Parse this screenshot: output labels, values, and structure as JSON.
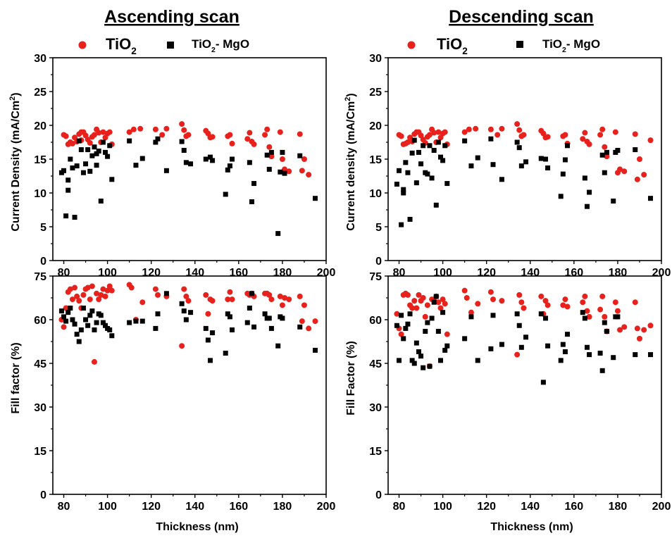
{
  "chart_data": [
    {
      "type": "scatter",
      "title": "Ascending scan",
      "xlabel": "Thickness (nm)",
      "ylabel": "Current Density (mA/Cm2)",
      "xlim": [
        75,
        200
      ],
      "ylim": [
        0,
        30
      ],
      "xticks": [
        "80",
        "100",
        "120",
        "140",
        "160",
        "180",
        "200"
      ],
      "yticks": [
        "0",
        "5",
        "10",
        "15",
        "20",
        "25",
        "30"
      ],
      "series": [
        {
          "name": "TiO2",
          "color": "#e8211c",
          "marker": "circle",
          "x": [
            80,
            81,
            82,
            83,
            84,
            85,
            86,
            87,
            88,
            88,
            89,
            90,
            91,
            92,
            93,
            94,
            95,
            96,
            97,
            98,
            99,
            100,
            101,
            102,
            110,
            112,
            115,
            122,
            125,
            127,
            134,
            135,
            136,
            137,
            145,
            146,
            147,
            148,
            155,
            156,
            157,
            164,
            165,
            166,
            167,
            172,
            173,
            174,
            175,
            179,
            180,
            181,
            183,
            188,
            189,
            190,
            192
          ],
          "y": [
            18.6,
            18.4,
            17.2,
            17.5,
            17.3,
            18.2,
            17.6,
            18.7,
            19.0,
            17.8,
            19.0,
            18.5,
            17.9,
            17.4,
            18.3,
            18.6,
            19.4,
            18.9,
            17.5,
            19.0,
            18.2,
            18.8,
            19.0,
            17.2,
            19.0,
            19.4,
            19.5,
            19.4,
            18.6,
            19.5,
            20.2,
            19.3,
            18.4,
            18.6,
            19.2,
            18.8,
            18.2,
            18.3,
            18.4,
            18.6,
            17.3,
            18.0,
            18.9,
            17.6,
            17.2,
            18.6,
            19.4,
            16.8,
            15.4,
            19.0,
            15.0,
            13.5,
            13.2,
            18.7,
            13.3,
            15.0,
            12.7
          ]
        },
        {
          "name": "TiO2- MgO",
          "color": "#000000",
          "marker": "square",
          "x": [
            79,
            80,
            81,
            82,
            82,
            83,
            84,
            85,
            86,
            87,
            88,
            89,
            90,
            91,
            92,
            93,
            94,
            95,
            95,
            96,
            97,
            98,
            99,
            100,
            101,
            102,
            110,
            113,
            116,
            122,
            123,
            127,
            134,
            135,
            136,
            138,
            145,
            147,
            148,
            154,
            155,
            156,
            157,
            165,
            166,
            167,
            173,
            174,
            175,
            178,
            179,
            180,
            181,
            188,
            195
          ],
          "y": [
            13.0,
            13.3,
            6.6,
            11.9,
            10.4,
            15.0,
            13.7,
            6.4,
            14.0,
            17.7,
            16.4,
            13.0,
            14.3,
            16.4,
            13.2,
            15.5,
            16.8,
            15.8,
            14.1,
            16.2,
            8.8,
            17.5,
            16.0,
            15.4,
            17.0,
            12.0,
            17.7,
            14.1,
            15.1,
            17.5,
            18.0,
            13.3,
            17.6,
            16.3,
            14.5,
            14.3,
            15.0,
            15.3,
            14.8,
            9.8,
            13.4,
            14.0,
            15.0,
            14.5,
            8.7,
            11.4,
            15.6,
            13.5,
            16.0,
            4.0,
            13.1,
            16.0,
            12.9,
            15.5,
            9.2
          ]
        }
      ]
    },
    {
      "type": "scatter",
      "title": "Descending scan",
      "xlabel": "Thickness (nm)",
      "ylabel": "Current density (mA/Cm2)",
      "xlim": [
        75,
        200
      ],
      "ylim": [
        0,
        30
      ],
      "xticks": [
        "80",
        "100",
        "120",
        "140",
        "160",
        "180",
        "200"
      ],
      "yticks": [
        "0",
        "5",
        "10",
        "15",
        "20",
        "25",
        "30"
      ],
      "series": [
        {
          "name": "TiO2",
          "color": "#e8211c",
          "marker": "circle",
          "x": [
            80,
            81,
            82,
            83,
            84,
            85,
            86,
            87,
            88,
            89,
            90,
            91,
            92,
            93,
            94,
            95,
            96,
            97,
            98,
            99,
            100,
            101,
            102,
            110,
            112,
            115,
            122,
            125,
            127,
            134,
            135,
            136,
            137,
            145,
            146,
            147,
            148,
            155,
            156,
            157,
            164,
            165,
            166,
            167,
            172,
            173,
            174,
            175,
            179,
            180,
            181,
            183,
            188,
            189,
            190,
            192,
            195
          ],
          "y": [
            18.6,
            18.4,
            17.2,
            17.3,
            17.5,
            18.2,
            17.6,
            18.7,
            19.0,
            19.0,
            18.5,
            17.9,
            17.4,
            18.3,
            18.6,
            19.4,
            18.9,
            17.5,
            19.0,
            18.2,
            18.8,
            19.0,
            17.2,
            19.0,
            19.4,
            19.5,
            19.4,
            18.6,
            19.5,
            20.2,
            19.3,
            18.4,
            18.6,
            19.2,
            18.8,
            18.2,
            18.3,
            18.4,
            18.6,
            17.3,
            18.0,
            18.9,
            17.6,
            17.2,
            18.6,
            19.4,
            16.8,
            15.4,
            19.0,
            13.0,
            13.5,
            13.2,
            18.7,
            12.0,
            15.0,
            12.7,
            17.8
          ]
        },
        {
          "name": "TiO2- MgO",
          "color": "#000000",
          "marker": "square",
          "x": [
            79,
            80,
            81,
            82,
            82,
            83,
            84,
            85,
            86,
            87,
            88,
            89,
            90,
            91,
            92,
            93,
            94,
            95,
            96,
            97,
            98,
            99,
            100,
            101,
            102,
            110,
            113,
            116,
            122,
            123,
            127,
            134,
            135,
            136,
            138,
            145,
            147,
            148,
            154,
            155,
            156,
            157,
            165,
            166,
            167,
            173,
            174,
            175,
            178,
            179,
            180,
            188,
            195
          ],
          "y": [
            11.3,
            13.3,
            5.3,
            10.5,
            10.0,
            14.5,
            13.0,
            6.1,
            15.9,
            17.8,
            11.5,
            16.0,
            14.3,
            17.0,
            13.0,
            12.8,
            17.0,
            12.2,
            16.3,
            8.2,
            17.5,
            15.3,
            14.8,
            17.0,
            11.4,
            17.7,
            14.0,
            15.2,
            18.0,
            14.2,
            12.0,
            17.5,
            16.7,
            14.0,
            14.6,
            15.1,
            15.0,
            13.7,
            9.5,
            12.8,
            14.9,
            17.0,
            12.2,
            8.0,
            10.1,
            15.6,
            13.0,
            16.0,
            8.8,
            16.0,
            16.3,
            16.4,
            9.2
          ]
        }
      ]
    },
    {
      "type": "scatter",
      "title": "",
      "xlabel": "Thickness (nm)",
      "ylabel": "Fill factor (%)",
      "xlim": [
        75,
        200
      ],
      "ylim": [
        0,
        75
      ],
      "xticks": [
        "80",
        "100",
        "120",
        "140",
        "160",
        "180",
        "200"
      ],
      "yticks": [
        "0",
        "15",
        "30",
        "45",
        "60",
        "75"
      ],
      "series": [
        {
          "name": "TiO2",
          "color": "#e8211c",
          "marker": "circle",
          "x": [
            79,
            80,
            81,
            82,
            83,
            84,
            85,
            86,
            87,
            88,
            89,
            90,
            91,
            92,
            93,
            94,
            95,
            96,
            97,
            98,
            99,
            100,
            101,
            102,
            110,
            111,
            113,
            116,
            122,
            123,
            127,
            134,
            135,
            136,
            137,
            145,
            146,
            147,
            148,
            155,
            156,
            157,
            164,
            165,
            166,
            167,
            172,
            173,
            174,
            175,
            179,
            180,
            181,
            183,
            188,
            189,
            190,
            192,
            195
          ],
          "y": [
            60.0,
            57.5,
            64.0,
            69.5,
            70.5,
            67.0,
            71.0,
            68.0,
            66.5,
            64.0,
            68.5,
            70.5,
            71.0,
            67.0,
            71.5,
            45.5,
            69.0,
            67.0,
            68.5,
            70.5,
            68.0,
            70.0,
            71.5,
            70.0,
            72.0,
            71.0,
            60.0,
            66.0,
            70.5,
            68.5,
            68.0,
            51.0,
            70.5,
            68.0,
            66.5,
            68.5,
            62.0,
            67.0,
            66.5,
            67.0,
            69.5,
            67.0,
            69.0,
            68.5,
            69.0,
            68.0,
            69.0,
            69.0,
            68.5,
            67.0,
            68.0,
            65.0,
            67.5,
            67.0,
            68.0,
            59.5,
            65.0,
            57.0,
            59.5
          ]
        },
        {
          "name": "TiO2- MgO",
          "color": "#000000",
          "marker": "square",
          "x": [
            79,
            80,
            81,
            82,
            83,
            84,
            85,
            86,
            87,
            88,
            89,
            90,
            91,
            92,
            93,
            94,
            95,
            96,
            97,
            98,
            99,
            100,
            101,
            102,
            110,
            113,
            116,
            122,
            123,
            127,
            134,
            135,
            136,
            138,
            145,
            146,
            147,
            148,
            154,
            155,
            156,
            157,
            164,
            165,
            166,
            167,
            172,
            173,
            174,
            175,
            178,
            179,
            180,
            188,
            195
          ],
          "y": [
            63.0,
            61.0,
            59.5,
            62.5,
            64.0,
            60.0,
            58.5,
            55.0,
            52.5,
            56.5,
            64.0,
            60.0,
            58.0,
            61.5,
            63.0,
            56.5,
            59.0,
            62.0,
            61.5,
            59.0,
            58.0,
            57.0,
            56.5,
            54.5,
            59.0,
            59.5,
            59.5,
            57.0,
            62.0,
            69.0,
            65.5,
            63.0,
            60.0,
            62.5,
            57.0,
            53.0,
            46.0,
            55.5,
            48.5,
            62.0,
            61.0,
            56.5,
            59.0,
            64.0,
            69.0,
            57.5,
            62.0,
            60.5,
            60.5,
            57.0,
            51.0,
            61.0,
            60.5,
            57.5,
            49.5
          ]
        }
      ]
    },
    {
      "type": "scatter",
      "title": "",
      "xlabel": "Thickness (nm)",
      "ylabel": "Fill Factor (%)",
      "xlim": [
        75,
        200
      ],
      "ylim": [
        0,
        75
      ],
      "xticks": [
        "80",
        "100",
        "120",
        "140",
        "160",
        "180",
        "200"
      ],
      "yticks": [
        "0",
        "15",
        "30",
        "45",
        "60",
        "75"
      ],
      "series": [
        {
          "name": "TiO2",
          "color": "#e8211c",
          "marker": "circle",
          "x": [
            79,
            80,
            81,
            82,
            83,
            84,
            85,
            86,
            87,
            88,
            89,
            90,
            91,
            92,
            93,
            94,
            95,
            96,
            97,
            98,
            99,
            100,
            101,
            102,
            110,
            111,
            113,
            116,
            122,
            123,
            127,
            134,
            135,
            136,
            137,
            145,
            146,
            147,
            148,
            155,
            156,
            157,
            164,
            165,
            166,
            167,
            172,
            173,
            174,
            175,
            179,
            180,
            181,
            183,
            188,
            189,
            190,
            192,
            195
          ],
          "y": [
            62.0,
            57.0,
            55.0,
            68.5,
            69.0,
            68.5,
            65.0,
            64.0,
            66.5,
            64.0,
            68.5,
            66.5,
            67.5,
            61.0,
            65.0,
            44.0,
            67.0,
            66.5,
            68.0,
            66.0,
            64.0,
            67.0,
            65.5,
            55.0,
            70.0,
            67.5,
            62.5,
            65.5,
            69.5,
            67.0,
            66.5,
            48.0,
            68.5,
            66.0,
            64.0,
            68.0,
            62.0,
            66.5,
            65.0,
            65.0,
            67.0,
            64.5,
            66.0,
            68.0,
            63.0,
            61.0,
            63.5,
            68.0,
            61.0,
            56.0,
            66.0,
            63.0,
            56.5,
            57.5,
            66.0,
            57.0,
            53.5,
            56.5,
            58.0
          ]
        },
        {
          "name": "TiO2- MgO",
          "color": "#000000",
          "marker": "square",
          "x": [
            79,
            80,
            81,
            82,
            83,
            84,
            85,
            86,
            87,
            88,
            89,
            90,
            91,
            92,
            93,
            94,
            95,
            96,
            97,
            98,
            99,
            100,
            101,
            102,
            110,
            113,
            116,
            122,
            123,
            127,
            134,
            135,
            136,
            138,
            145,
            146,
            147,
            148,
            154,
            155,
            156,
            157,
            164,
            165,
            166,
            167,
            172,
            173,
            174,
            175,
            178,
            179,
            180,
            188,
            195
          ],
          "y": [
            58.0,
            46.0,
            61.5,
            53.5,
            57.0,
            58.5,
            62.0,
            46.0,
            45.0,
            52.0,
            49.0,
            47.5,
            43.5,
            56.0,
            59.0,
            44.0,
            60.5,
            66.0,
            68.0,
            56.0,
            46.0,
            62.5,
            49.5,
            51.0,
            53.5,
            61.0,
            46.0,
            50.0,
            61.5,
            51.5,
            62.0,
            58.0,
            50.5,
            54.0,
            62.0,
            38.5,
            60.5,
            51.0,
            46.0,
            51.5,
            49.0,
            55.0,
            62.5,
            60.5,
            50.5,
            48.0,
            48.5,
            42.5,
            59.0,
            56.0,
            47.0,
            61.0,
            61.0,
            48.0,
            48.0
          ]
        }
      ]
    }
  ],
  "legend": {
    "tio2_main": "TiO",
    "tio2_sub": "2",
    "mgo_main": "TiO",
    "mgo_sub": "2",
    "mgo_rest": "- MgO"
  },
  "ylabel_parts": {
    "current_asc_main": "Current Density (mA/Cm",
    "current_desc_main": "Current density (mA/Cm",
    "sup": "2",
    "close": ")"
  }
}
